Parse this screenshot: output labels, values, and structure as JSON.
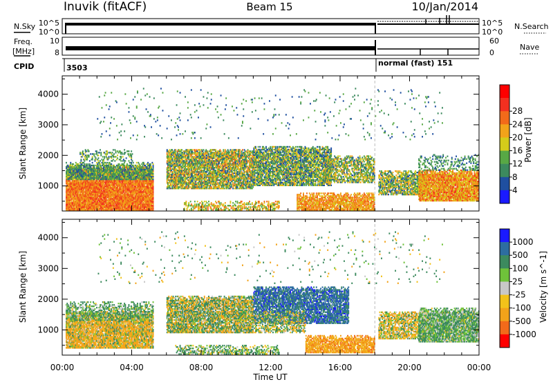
{
  "header": {
    "station": "Inuvik (fitACF)",
    "beam": "Beam 15",
    "date": "10/Jan/2014"
  },
  "strips": {
    "nsky_label": "N.Sky",
    "nsky_ticks": [
      "10^5",
      "10^0"
    ],
    "nsearch_label": "N.Search",
    "nsearch_ticks": [
      "10^5",
      "10^0"
    ],
    "freq_label_1": "Freq.",
    "freq_label_2": "[MHz]",
    "freq_ticks": [
      "10",
      "8"
    ],
    "nave_label": "Nave",
    "nave_ticks": [
      "60",
      "0"
    ],
    "cpid_label": "CPID",
    "cpid_1": "3503",
    "cpid_2": "normal (fast) 151"
  },
  "time_axis": {
    "title": "Time UT",
    "ticks": [
      "00:00",
      "04:00",
      "08:00",
      "12:00",
      "16:00",
      "20:00",
      "00:00"
    ]
  },
  "chart_data": [
    {
      "type": "heatmap",
      "name": "Power",
      "ylabel": "Slant Range [km]",
      "x_range_hours": [
        0,
        24
      ],
      "ylim": [
        180,
        4600
      ],
      "yticks": [
        1000,
        2000,
        3000,
        4000
      ],
      "colorbar": {
        "title": "Power [dB]",
        "ticks": [
          "4",
          "8",
          "12",
          "16",
          "20",
          "24",
          "28"
        ],
        "colors": [
          "#1a1aff",
          "#1f4fa0",
          "#3c8a5e",
          "#58a845",
          "#d4cc1a",
          "#f2a31a",
          "#f26a1a",
          "#f23020",
          "#ff0000"
        ]
      },
      "regions": [
        {
          "h": [
            0.2,
            5.2
          ],
          "r": [
            200,
            1600
          ],
          "dens": 0.95,
          "vals": [
            20,
            30
          ]
        },
        {
          "h": [
            0.2,
            5.2
          ],
          "r": [
            1200,
            1750
          ],
          "dens": 0.8,
          "vals": [
            6,
            18
          ]
        },
        {
          "h": [
            1.0,
            4.0
          ],
          "r": [
            1800,
            2200
          ],
          "dens": 0.3,
          "vals": [
            6,
            18
          ]
        },
        {
          "h": [
            6.0,
            11.0
          ],
          "r": [
            900,
            2200
          ],
          "dens": 0.8,
          "vals": [
            6,
            26
          ]
        },
        {
          "h": [
            11.0,
            15.5
          ],
          "r": [
            1000,
            2300
          ],
          "dens": 0.75,
          "vals": [
            4,
            22
          ]
        },
        {
          "h": [
            15.0,
            18.0
          ],
          "r": [
            1100,
            2000
          ],
          "dens": 0.6,
          "vals": [
            6,
            24
          ]
        },
        {
          "h": [
            13.5,
            18.0
          ],
          "r": [
            200,
            750
          ],
          "dens": 0.8,
          "vals": [
            18,
            28
          ]
        },
        {
          "h": [
            7.0,
            12.5
          ],
          "r": [
            200,
            500
          ],
          "dens": 0.5,
          "vals": [
            12,
            26
          ]
        },
        {
          "h": [
            18.2,
            21.0
          ],
          "r": [
            700,
            1500
          ],
          "dens": 0.7,
          "vals": [
            6,
            24
          ]
        },
        {
          "h": [
            20.5,
            24.0
          ],
          "r": [
            500,
            1500
          ],
          "dens": 0.9,
          "vals": [
            16,
            30
          ]
        },
        {
          "h": [
            20.5,
            24.0
          ],
          "r": [
            1500,
            2000
          ],
          "dens": 0.3,
          "vals": [
            6,
            16
          ]
        },
        {
          "h": [
            2.0,
            22.0
          ],
          "r": [
            2500,
            4200
          ],
          "dens": 0.02,
          "vals": [
            4,
            16
          ]
        }
      ]
    },
    {
      "type": "heatmap",
      "name": "Velocity",
      "ylabel": "Slant Range [km]",
      "x_range_hours": [
        0,
        24
      ],
      "ylim": [
        180,
        4600
      ],
      "yticks": [
        1000,
        2000,
        3000,
        4000
      ],
      "colorbar": {
        "title": "Velocity [m s^-1]",
        "ticks": [
          "1000",
          "500",
          "100",
          "25",
          "-25",
          "-100",
          "-500",
          "-1000"
        ],
        "colors": [
          "#1a1aff",
          "#2d6da0",
          "#3c8a5e",
          "#6fc23a",
          "#c8c8c8",
          "#f2c21a",
          "#f2a31a",
          "#f26a1a",
          "#ff0000"
        ]
      },
      "regions": [
        {
          "h": [
            0.2,
            5.2
          ],
          "r": [
            400,
            1600
          ],
          "dens": 0.9,
          "vals": [
            -500,
            200
          ]
        },
        {
          "h": [
            0.2,
            5.2
          ],
          "r": [
            1300,
            1900
          ],
          "dens": 0.5,
          "vals": [
            -50,
            300
          ]
        },
        {
          "h": [
            6.0,
            11.0
          ],
          "r": [
            900,
            2100
          ],
          "dens": 0.8,
          "vals": [
            -300,
            400
          ]
        },
        {
          "h": [
            11.0,
            16.5
          ],
          "r": [
            1200,
            2400
          ],
          "dens": 0.75,
          "vals": [
            300,
            1100
          ]
        },
        {
          "h": [
            10.0,
            14.0
          ],
          "r": [
            900,
            1600
          ],
          "dens": 0.5,
          "vals": [
            -200,
            300
          ]
        },
        {
          "h": [
            14.0,
            18.0
          ],
          "r": [
            250,
            800
          ],
          "dens": 0.8,
          "vals": [
            -600,
            -50
          ]
        },
        {
          "h": [
            6.5,
            12.5
          ],
          "r": [
            200,
            500
          ],
          "dens": 0.5,
          "vals": [
            -100,
            300
          ]
        },
        {
          "h": [
            18.2,
            21.0
          ],
          "r": [
            700,
            1600
          ],
          "dens": 0.7,
          "vals": [
            -300,
            200
          ]
        },
        {
          "h": [
            20.5,
            24.0
          ],
          "r": [
            600,
            1700
          ],
          "dens": 0.85,
          "vals": [
            -40,
            250
          ]
        },
        {
          "h": [
            2.0,
            22.0
          ],
          "r": [
            2500,
            4200
          ],
          "dens": 0.02,
          "vals": [
            -200,
            500
          ]
        }
      ]
    }
  ]
}
